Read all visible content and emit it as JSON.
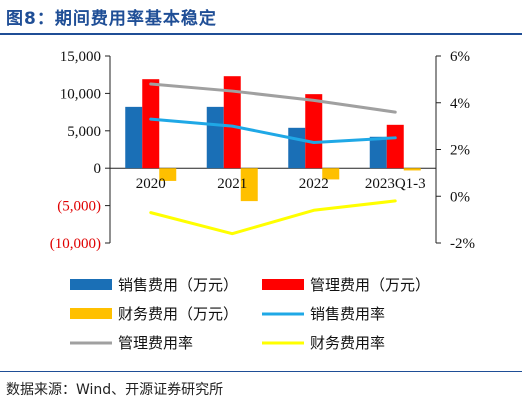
{
  "title": "图8：期间费用率基本稳定",
  "source": "数据来源：Wind、开源证券研究所",
  "chart_data": {
    "type": "bar",
    "categories": [
      "2020",
      "2021",
      "2022",
      "2023Q1-3"
    ],
    "left_axis": {
      "ylim": [
        -10000,
        15000
      ],
      "ticks": [
        -10000,
        -5000,
        0,
        5000,
        10000,
        15000
      ],
      "tick_labels": [
        "(10,000)",
        "(5,000)",
        "0",
        "5,000",
        "10,000",
        "15,000"
      ],
      "negative_label_color": "#e00000"
    },
    "right_axis": {
      "ylim": [
        -2,
        6
      ],
      "ticks": [
        -2,
        0,
        2,
        4,
        6
      ],
      "tick_labels": [
        "-2%",
        "0%",
        "2%",
        "4%",
        "6%"
      ]
    },
    "series": [
      {
        "name": "销售费用（万元）",
        "type": "bar",
        "axis": "left",
        "color": "#1a6fb6",
        "values": [
          8200,
          8200,
          5400,
          4200
        ]
      },
      {
        "name": "管理费用（万元）",
        "type": "bar",
        "axis": "left",
        "color": "#ff0000",
        "values": [
          11900,
          12300,
          9900,
          5800
        ]
      },
      {
        "name": "财务费用（万元）",
        "type": "bar",
        "axis": "left",
        "color": "#ffc000",
        "values": [
          -1700,
          -4400,
          -1500,
          -300
        ]
      },
      {
        "name": "销售费用率",
        "type": "line",
        "axis": "right",
        "color": "#1fa8e6",
        "values": [
          3.3,
          3.0,
          2.3,
          2.5
        ]
      },
      {
        "name": "管理费用率",
        "type": "line",
        "axis": "right",
        "color": "#a0a0a0",
        "values": [
          4.8,
          4.5,
          4.1,
          3.6
        ]
      },
      {
        "name": "财务费用率",
        "type": "line",
        "axis": "right",
        "color": "#ffff00",
        "values": [
          -0.7,
          -1.6,
          -0.6,
          -0.2
        ]
      }
    ],
    "legend_position": "bottom"
  }
}
